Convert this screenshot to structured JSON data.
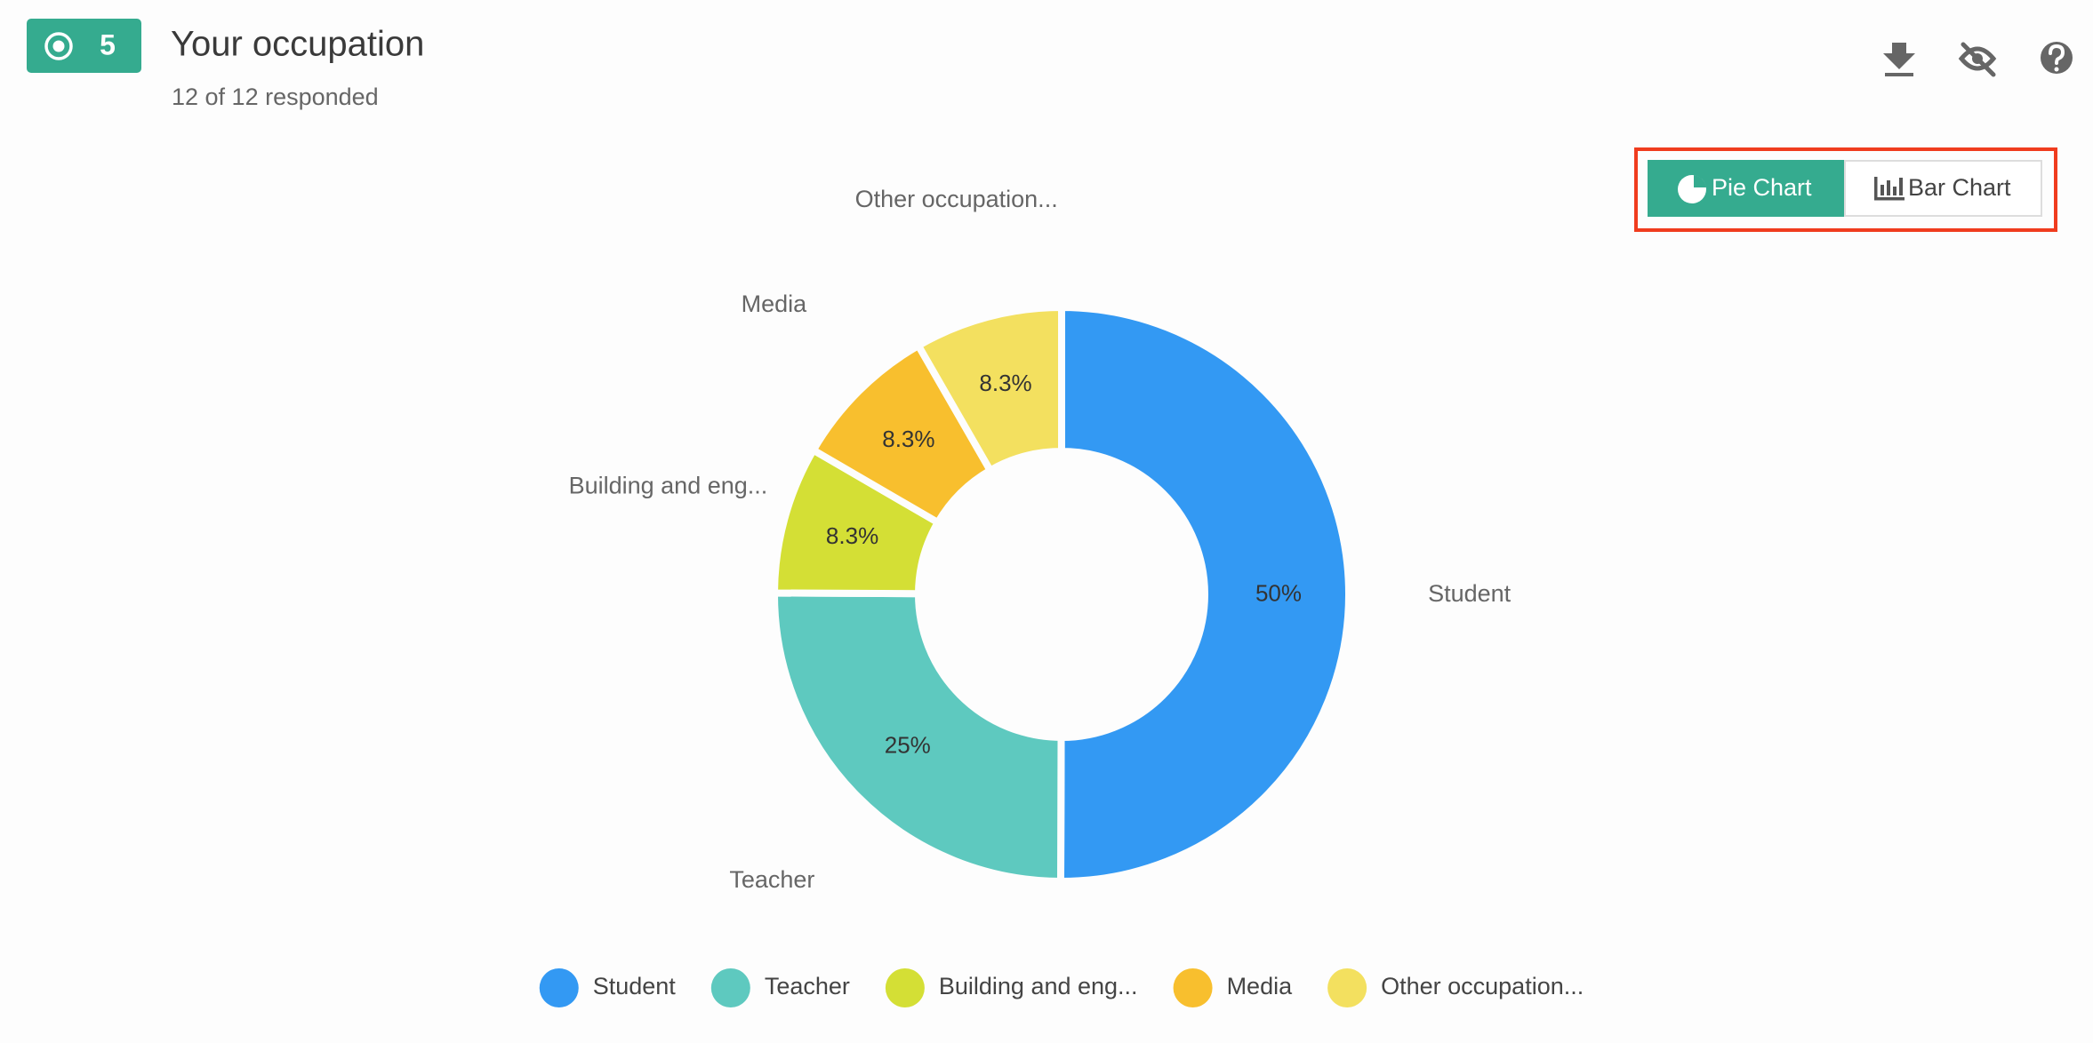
{
  "header": {
    "badge": "5",
    "title": "Your occupation",
    "subtitle": "12 of 12 responded"
  },
  "toggle": {
    "options": [
      "Pie Chart",
      "Bar Chart"
    ]
  },
  "chart_data": {
    "type": "donut",
    "categories": [
      "Student",
      "Teacher",
      "Building and eng...",
      "Media",
      "Other occupation..."
    ],
    "values": [
      50,
      25,
      8.3,
      8.3,
      8.3
    ],
    "value_labels": [
      "50%",
      "25%",
      "8.3%",
      "8.3%",
      "8.3%"
    ],
    "colors": [
      "#3399f3",
      "#5ec9bf",
      "#d4df35",
      "#f8bf2e",
      "#f3e05f"
    ],
    "legend": "bottom"
  }
}
